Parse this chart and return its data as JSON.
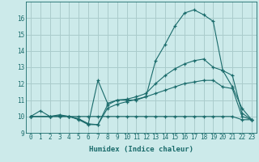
{
  "background_color": "#cceaea",
  "grid_color": "#aacccc",
  "line_color": "#1a6b6b",
  "xlabel": "Humidex (Indice chaleur)",
  "ylim": [
    9,
    17
  ],
  "xlim": [
    -0.5,
    23.5
  ],
  "yticks": [
    9,
    10,
    11,
    12,
    13,
    14,
    15,
    16
  ],
  "xticks": [
    0,
    1,
    2,
    3,
    4,
    5,
    6,
    7,
    8,
    9,
    10,
    11,
    12,
    13,
    14,
    15,
    16,
    17,
    18,
    19,
    20,
    21,
    22,
    23
  ],
  "series": [
    {
      "x": [
        0,
        1,
        2,
        3,
        4,
        5,
        6,
        7,
        8,
        9,
        10,
        11,
        12,
        13,
        14,
        15,
        16,
        17,
        18,
        19,
        20,
        21,
        22,
        23
      ],
      "y": [
        10.0,
        10.35,
        10.0,
        10.1,
        10.0,
        9.8,
        9.5,
        9.5,
        10.7,
        11.0,
        11.0,
        11.0,
        11.2,
        13.4,
        14.4,
        15.5,
        16.3,
        16.5,
        16.2,
        15.8,
        12.8,
        11.8,
        10.5,
        9.8
      ]
    },
    {
      "x": [
        0,
        2,
        3,
        4,
        5,
        6,
        7,
        8,
        9,
        10,
        11,
        12,
        13,
        14,
        15,
        16,
        17,
        18,
        19,
        20,
        21,
        22,
        23
      ],
      "y": [
        10.0,
        10.0,
        10.05,
        10.0,
        9.85,
        9.55,
        12.2,
        10.8,
        11.0,
        11.05,
        11.2,
        11.4,
        12.0,
        12.5,
        12.9,
        13.2,
        13.4,
        13.5,
        13.0,
        12.8,
        12.5,
        10.2,
        9.8
      ]
    },
    {
      "x": [
        0,
        2,
        3,
        4,
        5,
        6,
        7,
        8,
        9,
        10,
        11,
        12,
        13,
        14,
        15,
        16,
        17,
        18,
        19,
        20,
        21,
        22,
        23
      ],
      "y": [
        10.0,
        10.0,
        10.0,
        10.0,
        9.85,
        9.55,
        9.5,
        10.5,
        10.75,
        10.9,
        11.05,
        11.2,
        11.4,
        11.6,
        11.8,
        12.0,
        12.1,
        12.2,
        12.2,
        11.8,
        11.7,
        10.0,
        9.8
      ]
    },
    {
      "x": [
        0,
        2,
        3,
        4,
        5,
        6,
        7,
        8,
        9,
        10,
        11,
        12,
        13,
        14,
        15,
        16,
        17,
        18,
        19,
        20,
        21,
        22,
        23
      ],
      "y": [
        10.0,
        10.0,
        10.0,
        10.0,
        10.0,
        10.0,
        10.0,
        10.0,
        10.0,
        10.0,
        10.0,
        10.0,
        10.0,
        10.0,
        10.0,
        10.0,
        10.0,
        10.0,
        10.0,
        10.0,
        10.0,
        9.8,
        9.8
      ]
    }
  ]
}
